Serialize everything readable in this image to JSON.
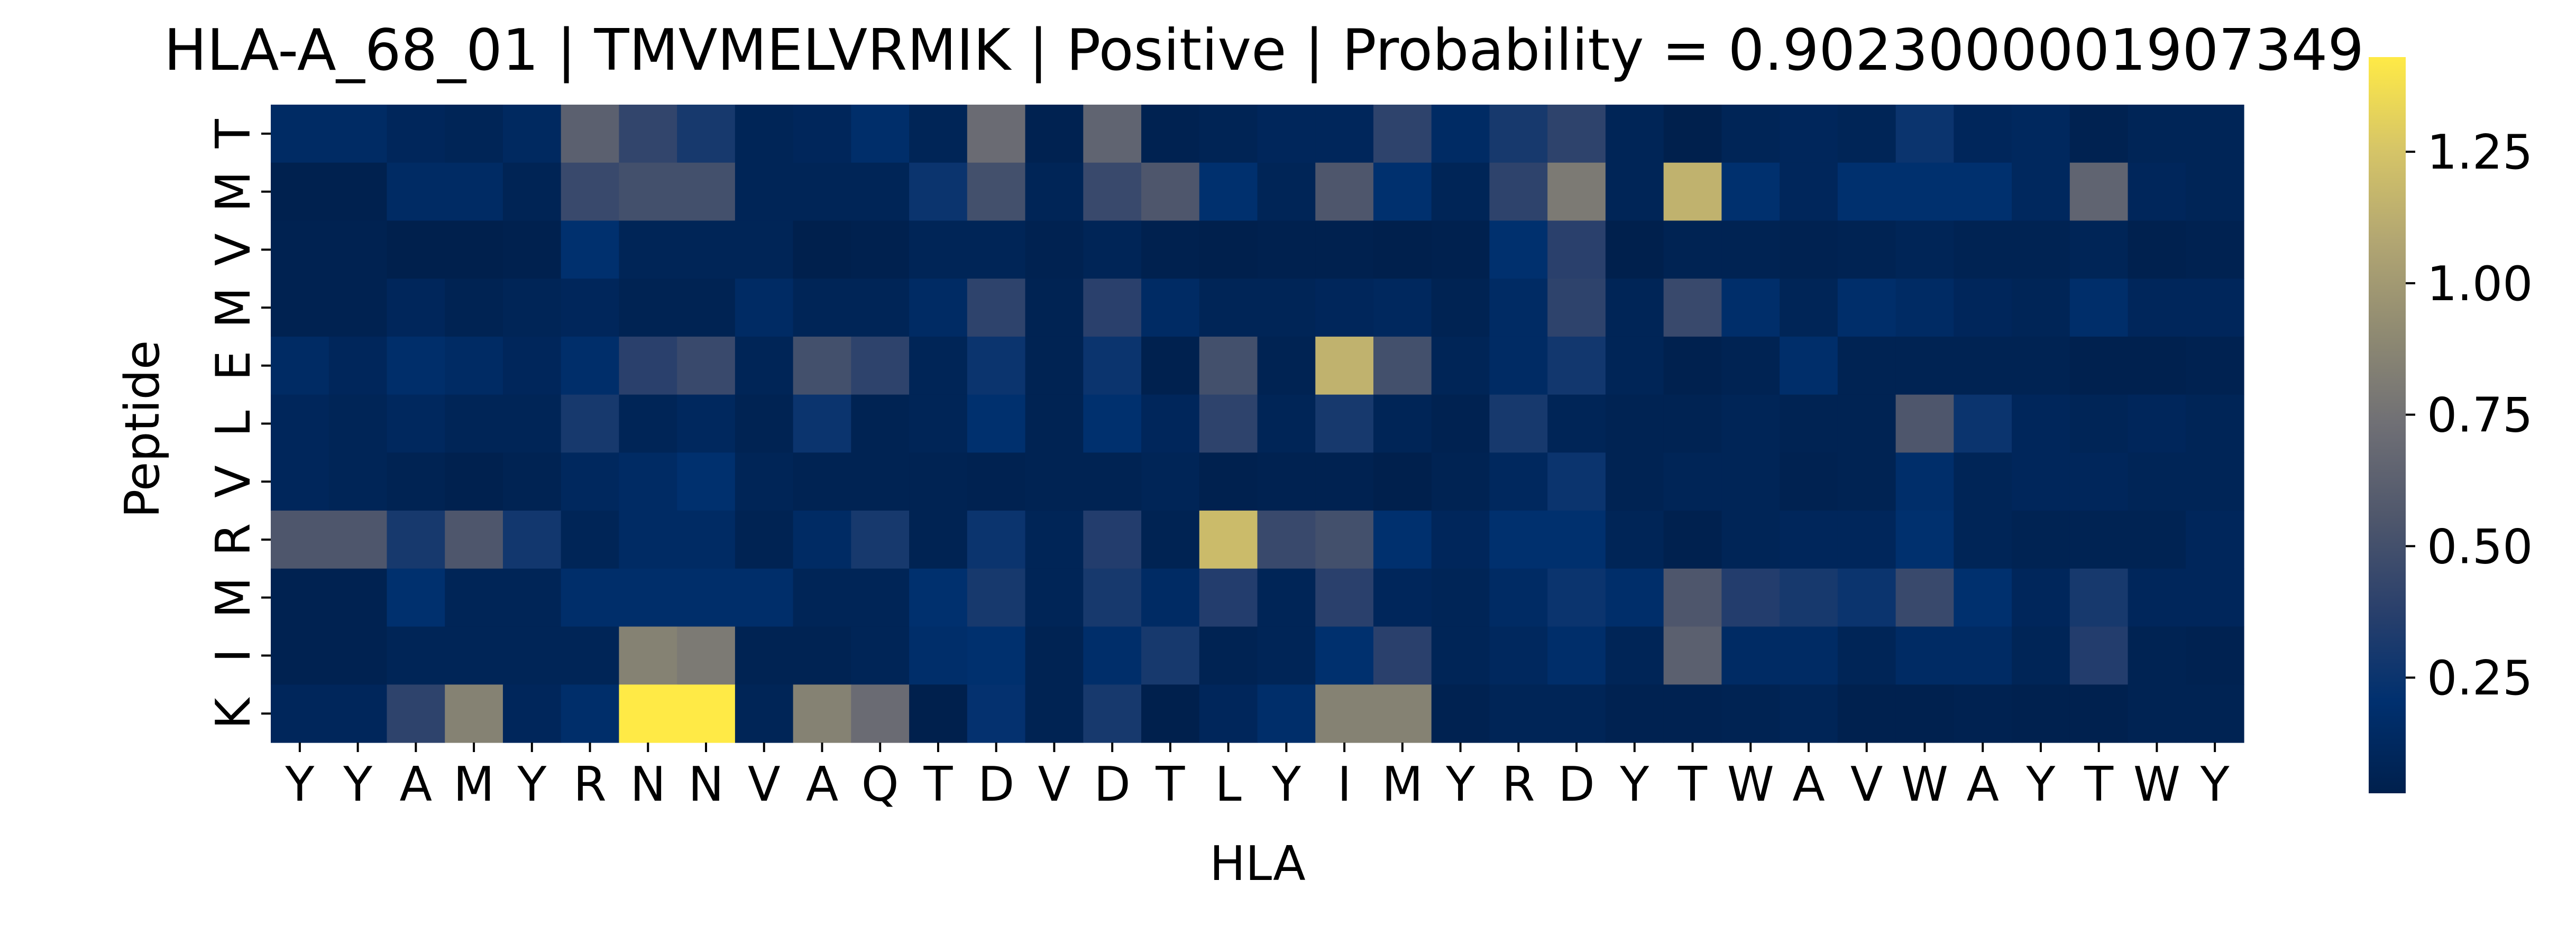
{
  "chart_data": {
    "type": "heatmap",
    "title": "HLA-A_68_01 | TMVMELVRMIK | Positive | Probability = 0.9023000001907349",
    "xlabel": "HLA",
    "ylabel": "Peptide",
    "x_categories": [
      "Y",
      "Y",
      "A",
      "M",
      "Y",
      "R",
      "N",
      "N",
      "V",
      "A",
      "Q",
      "T",
      "D",
      "V",
      "D",
      "T",
      "L",
      "Y",
      "I",
      "M",
      "Y",
      "R",
      "D",
      "Y",
      "T",
      "W",
      "A",
      "V",
      "W",
      "A",
      "Y",
      "T",
      "W",
      "Y"
    ],
    "y_categories": [
      "T",
      "M",
      "V",
      "M",
      "E",
      "L",
      "V",
      "R",
      "M",
      "I",
      "K"
    ],
    "colorbar": {
      "min": 0.03,
      "max": 1.43,
      "ticks": [
        0.25,
        0.5,
        0.75,
        1.0,
        1.25
      ],
      "tick_labels": [
        "0.25",
        "0.50",
        "0.75",
        "1.00",
        "1.25"
      ],
      "colormap": "cividis"
    },
    "values": [
      [
        0.15,
        0.15,
        0.1,
        0.08,
        0.13,
        0.62,
        0.42,
        0.3,
        0.08,
        0.1,
        0.18,
        0.08,
        0.7,
        0.05,
        0.65,
        0.05,
        0.07,
        0.1,
        0.1,
        0.4,
        0.15,
        0.3,
        0.4,
        0.08,
        0.03,
        0.08,
        0.1,
        0.08,
        0.25,
        0.1,
        0.12,
        0.05,
        0.08,
        0.08
      ],
      [
        0.04,
        0.04,
        0.15,
        0.15,
        0.07,
        0.45,
        0.5,
        0.5,
        0.08,
        0.08,
        0.08,
        0.25,
        0.5,
        0.08,
        0.45,
        0.55,
        0.2,
        0.08,
        0.55,
        0.2,
        0.08,
        0.4,
        0.8,
        0.08,
        1.15,
        0.2,
        0.1,
        0.2,
        0.2,
        0.2,
        0.12,
        0.65,
        0.1,
        0.08
      ],
      [
        0.05,
        0.05,
        0.03,
        0.03,
        0.04,
        0.2,
        0.08,
        0.08,
        0.08,
        0.02,
        0.04,
        0.08,
        0.08,
        0.05,
        0.08,
        0.04,
        0.03,
        0.04,
        0.04,
        0.03,
        0.04,
        0.2,
        0.38,
        0.03,
        0.06,
        0.06,
        0.05,
        0.06,
        0.08,
        0.06,
        0.06,
        0.08,
        0.04,
        0.05
      ],
      [
        0.05,
        0.05,
        0.1,
        0.06,
        0.08,
        0.1,
        0.06,
        0.06,
        0.15,
        0.08,
        0.08,
        0.15,
        0.4,
        0.06,
        0.38,
        0.15,
        0.08,
        0.08,
        0.1,
        0.12,
        0.06,
        0.15,
        0.4,
        0.08,
        0.45,
        0.18,
        0.08,
        0.18,
        0.15,
        0.1,
        0.08,
        0.18,
        0.1,
        0.1
      ],
      [
        0.15,
        0.1,
        0.18,
        0.15,
        0.1,
        0.18,
        0.38,
        0.45,
        0.08,
        0.5,
        0.4,
        0.08,
        0.25,
        0.06,
        0.25,
        0.04,
        0.5,
        0.06,
        1.15,
        0.5,
        0.08,
        0.15,
        0.28,
        0.08,
        0.04,
        0.06,
        0.18,
        0.06,
        0.06,
        0.06,
        0.06,
        0.04,
        0.04,
        0.05
      ],
      [
        0.1,
        0.08,
        0.12,
        0.08,
        0.08,
        0.3,
        0.08,
        0.12,
        0.06,
        0.25,
        0.06,
        0.08,
        0.2,
        0.06,
        0.2,
        0.1,
        0.4,
        0.08,
        0.3,
        0.08,
        0.05,
        0.3,
        0.08,
        0.06,
        0.06,
        0.08,
        0.06,
        0.06,
        0.55,
        0.25,
        0.1,
        0.08,
        0.1,
        0.08
      ],
      [
        0.1,
        0.08,
        0.06,
        0.04,
        0.06,
        0.12,
        0.15,
        0.2,
        0.08,
        0.06,
        0.06,
        0.06,
        0.05,
        0.06,
        0.06,
        0.08,
        0.04,
        0.05,
        0.05,
        0.03,
        0.06,
        0.12,
        0.25,
        0.06,
        0.08,
        0.08,
        0.05,
        0.06,
        0.18,
        0.08,
        0.1,
        0.1,
        0.08,
        0.08
      ],
      [
        0.55,
        0.55,
        0.3,
        0.55,
        0.28,
        0.08,
        0.15,
        0.15,
        0.06,
        0.15,
        0.3,
        0.06,
        0.25,
        0.08,
        0.35,
        0.06,
        1.2,
        0.45,
        0.5,
        0.2,
        0.1,
        0.2,
        0.2,
        0.08,
        0.04,
        0.08,
        0.1,
        0.1,
        0.2,
        0.08,
        0.06,
        0.06,
        0.06,
        0.1
      ],
      [
        0.05,
        0.05,
        0.2,
        0.08,
        0.08,
        0.18,
        0.18,
        0.18,
        0.18,
        0.08,
        0.08,
        0.2,
        0.3,
        0.08,
        0.3,
        0.15,
        0.35,
        0.08,
        0.38,
        0.1,
        0.08,
        0.15,
        0.25,
        0.18,
        0.55,
        0.35,
        0.3,
        0.25,
        0.45,
        0.2,
        0.1,
        0.3,
        0.1,
        0.1
      ],
      [
        0.05,
        0.05,
        0.08,
        0.08,
        0.08,
        0.08,
        0.85,
        0.8,
        0.06,
        0.06,
        0.08,
        0.18,
        0.2,
        0.06,
        0.18,
        0.3,
        0.06,
        0.08,
        0.2,
        0.38,
        0.08,
        0.12,
        0.18,
        0.08,
        0.62,
        0.15,
        0.15,
        0.08,
        0.15,
        0.15,
        0.08,
        0.35,
        0.06,
        0.05
      ],
      [
        0.1,
        0.1,
        0.4,
        0.85,
        0.1,
        0.18,
        1.43,
        1.43,
        0.08,
        0.85,
        0.7,
        0.03,
        0.22,
        0.06,
        0.3,
        0.03,
        0.1,
        0.18,
        0.85,
        0.85,
        0.05,
        0.08,
        0.08,
        0.05,
        0.05,
        0.06,
        0.08,
        0.04,
        0.04,
        0.05,
        0.04,
        0.04,
        0.06,
        0.06
      ]
    ]
  }
}
